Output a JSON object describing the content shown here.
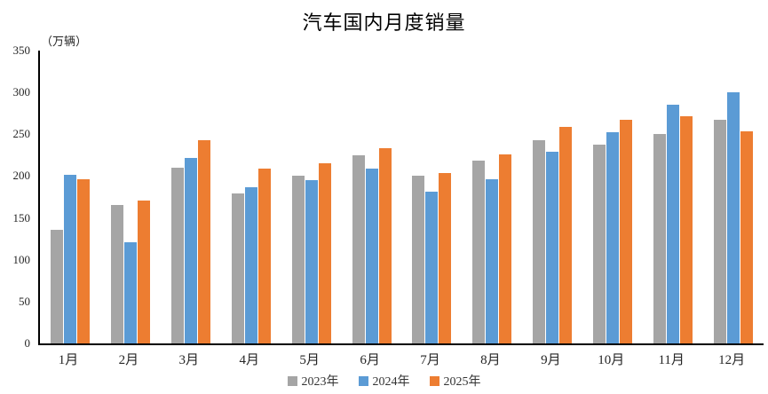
{
  "chart_data": {
    "type": "bar",
    "title": "汽车国内月度销量",
    "unit_label": "（万辆）",
    "xlabel": "",
    "ylabel": "（万辆）",
    "ylim": [
      0,
      350
    ],
    "ytick_step": 50,
    "grid": false,
    "legend_position": "bottom",
    "categories": [
      "1月",
      "2月",
      "3月",
      "4月",
      "5月",
      "6月",
      "7月",
      "8月",
      "9月",
      "10月",
      "11月",
      "12月"
    ],
    "series": [
      {
        "name": "2023年",
        "color": "#A5A5A5",
        "values": [
          136,
          166,
          210,
          179,
          200,
          225,
          201,
          219,
          243,
          238,
          250,
          267
        ]
      },
      {
        "name": "2024年",
        "color": "#5B9BD5",
        "values": [
          202,
          121,
          222,
          187,
          195,
          209,
          181,
          196,
          229,
          253,
          285,
          300
        ]
      },
      {
        "name": "2025年",
        "color": "#ED7D31",
        "values": [
          196,
          171,
          243,
          209,
          215,
          233,
          204,
          226,
          259,
          267,
          272,
          254
        ]
      }
    ],
    "colors": {
      "axis": "#000000",
      "tick_text": "#262626",
      "title_text": "#000000",
      "legend_text": "#333333",
      "background": "#ffffff"
    }
  }
}
